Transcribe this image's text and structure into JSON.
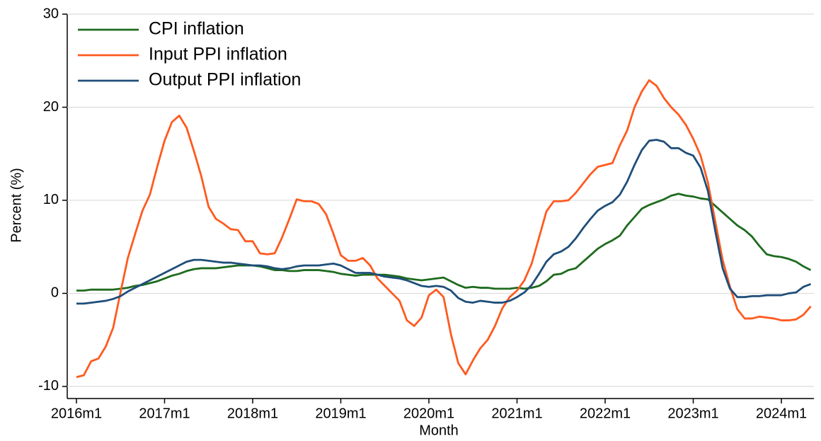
{
  "chart_data": {
    "type": "line",
    "y_label": "Percent (%)",
    "x_label": "Month",
    "categories": [
      "2016m1",
      null,
      null,
      null,
      null,
      null,
      null,
      null,
      null,
      null,
      null,
      null,
      "2017m1",
      null,
      null,
      null,
      null,
      null,
      null,
      null,
      null,
      null,
      null,
      null,
      "2018m1",
      null,
      null,
      null,
      null,
      null,
      null,
      null,
      null,
      null,
      null,
      null,
      "2019m1",
      null,
      null,
      null,
      null,
      null,
      null,
      null,
      null,
      null,
      null,
      null,
      "2020m1",
      null,
      null,
      null,
      null,
      null,
      null,
      null,
      null,
      null,
      null,
      null,
      "2021m1",
      null,
      null,
      null,
      null,
      null,
      null,
      null,
      null,
      null,
      null,
      null,
      "2022m1",
      null,
      null,
      null,
      null,
      null,
      null,
      null,
      null,
      null,
      null,
      null,
      "2023m1",
      null,
      null,
      null,
      null,
      null,
      null,
      null,
      null,
      null,
      null,
      null,
      "2024m1",
      null,
      null,
      null,
      null
    ],
    "series": [
      {
        "name": "CPI inflation",
        "color": "#1e6b1e",
        "values": [
          0.3,
          0.3,
          0.4,
          0.4,
          0.4,
          0.4,
          0.5,
          0.6,
          0.8,
          0.9,
          1.1,
          1.3,
          1.6,
          1.9,
          2.1,
          2.4,
          2.6,
          2.7,
          2.7,
          2.7,
          2.8,
          2.9,
          3.0,
          3.0,
          3.0,
          2.9,
          2.7,
          2.5,
          2.5,
          2.4,
          2.4,
          2.5,
          2.5,
          2.5,
          2.4,
          2.3,
          2.1,
          2.0,
          1.9,
          2.0,
          2.0,
          2.0,
          2.0,
          1.9,
          1.8,
          1.6,
          1.5,
          1.4,
          1.5,
          1.6,
          1.7,
          1.3,
          0.9,
          0.6,
          0.7,
          0.6,
          0.6,
          0.5,
          0.5,
          0.5,
          0.6,
          0.5,
          0.6,
          0.8,
          1.3,
          2.0,
          2.1,
          2.5,
          2.7,
          3.4,
          4.1,
          4.8,
          5.3,
          5.7,
          6.2,
          7.3,
          8.2,
          9.1,
          9.5,
          9.8,
          10.1,
          10.5,
          10.7,
          10.5,
          10.4,
          10.2,
          10.1,
          9.4,
          8.7,
          8.0,
          7.3,
          6.8,
          6.1,
          5.1,
          4.2,
          4.0,
          3.9,
          3.7,
          3.4,
          2.9,
          2.5
        ]
      },
      {
        "name": "Input PPI inflation",
        "color": "#ff5a1f",
        "values": [
          -9.0,
          -8.8,
          -7.3,
          -7.0,
          -5.7,
          -3.7,
          0.1,
          3.8,
          6.4,
          8.9,
          10.6,
          13.6,
          16.4,
          18.4,
          19.1,
          17.8,
          15.3,
          12.6,
          9.3,
          8.0,
          7.5,
          6.9,
          6.8,
          5.6,
          5.6,
          4.3,
          4.2,
          4.3,
          6.0,
          8.0,
          10.1,
          9.9,
          9.9,
          9.6,
          8.5,
          6.4,
          4.1,
          3.5,
          3.5,
          3.8,
          3.0,
          1.6,
          0.8,
          0.0,
          -0.8,
          -2.9,
          -3.5,
          -2.6,
          -0.2,
          0.4,
          -0.4,
          -4.4,
          -7.5,
          -8.7,
          -7.2,
          -5.9,
          -5.0,
          -3.5,
          -1.6,
          -0.4,
          0.3,
          1.4,
          3.2,
          6.0,
          8.8,
          9.9,
          9.9,
          10.0,
          10.8,
          11.8,
          12.8,
          13.6,
          13.8,
          14.0,
          15.9,
          17.5,
          20.0,
          21.7,
          22.9,
          22.3,
          21.0,
          20.0,
          19.2,
          18.1,
          16.6,
          14.8,
          11.9,
          7.7,
          3.6,
          0.7,
          -1.7,
          -2.7,
          -2.7,
          -2.5,
          -2.6,
          -2.7,
          -2.9,
          -2.9,
          -2.8,
          -2.3,
          -1.4
        ]
      },
      {
        "name": "Output PPI inflation",
        "color": "#1f4e79",
        "values": [
          -1.1,
          -1.1,
          -1.0,
          -0.9,
          -0.8,
          -0.6,
          -0.3,
          0.2,
          0.6,
          1.0,
          1.4,
          1.8,
          2.2,
          2.6,
          3.0,
          3.4,
          3.6,
          3.6,
          3.5,
          3.4,
          3.3,
          3.3,
          3.2,
          3.1,
          3.0,
          3.0,
          2.9,
          2.7,
          2.6,
          2.7,
          2.9,
          3.0,
          3.0,
          3.0,
          3.1,
          3.2,
          3.0,
          2.6,
          2.2,
          2.2,
          2.2,
          2.0,
          1.8,
          1.7,
          1.6,
          1.4,
          1.1,
          0.8,
          0.7,
          0.8,
          0.7,
          0.3,
          -0.5,
          -0.9,
          -1.0,
          -0.8,
          -0.9,
          -1.0,
          -1.0,
          -0.8,
          -0.4,
          0.1,
          0.9,
          2.1,
          3.4,
          4.2,
          4.5,
          5.0,
          5.9,
          7.0,
          8.0,
          8.9,
          9.4,
          9.8,
          10.6,
          12.0,
          13.8,
          15.4,
          16.4,
          16.5,
          16.3,
          15.6,
          15.6,
          15.1,
          14.8,
          13.5,
          11.0,
          6.7,
          2.7,
          0.5,
          -0.4,
          -0.4,
          -0.3,
          -0.3,
          -0.2,
          -0.2,
          -0.2,
          0.0,
          0.1,
          0.7,
          1.0
        ]
      }
    ],
    "ylim": [
      -11.3,
      30
    ],
    "yticks": [
      -10,
      0,
      10,
      20,
      30
    ],
    "grid": true,
    "legend": "top-left"
  }
}
